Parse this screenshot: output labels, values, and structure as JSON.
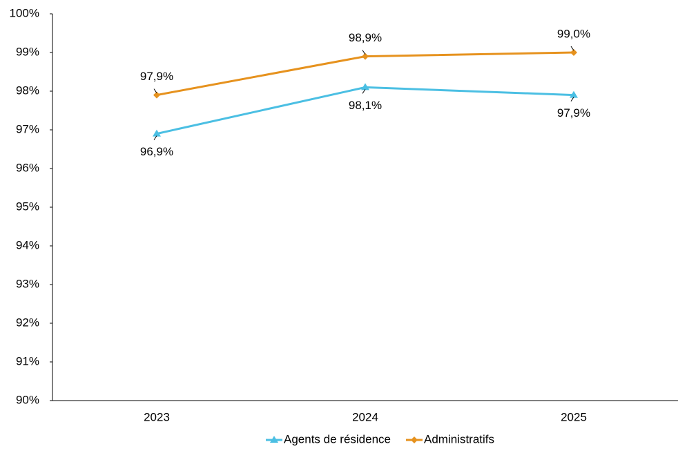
{
  "chart_data": {
    "type": "line",
    "categories": [
      "2023",
      "2024",
      "2025"
    ],
    "series": [
      {
        "name": "Agents de résidence",
        "color": "#4bbfe3",
        "marker": "triangle",
        "values": [
          96.9,
          98.1,
          97.9
        ],
        "value_labels": [
          "96,9%",
          "98,1%",
          "97,9%"
        ]
      },
      {
        "name": "Administratifs",
        "color": "#e6921e",
        "marker": "diamond",
        "values": [
          97.9,
          98.9,
          99.0
        ],
        "value_labels": [
          "97,9%",
          "98,9%",
          "99,0%"
        ]
      }
    ],
    "ylim": [
      90,
      100
    ],
    "yticks": [
      {
        "value": 90,
        "label": "90%"
      },
      {
        "value": 91,
        "label": "91%"
      },
      {
        "value": 92,
        "label": "92%"
      },
      {
        "value": 93,
        "label": "93%"
      },
      {
        "value": 94,
        "label": "94%"
      },
      {
        "value": 95,
        "label": "95%"
      },
      {
        "value": 96,
        "label": "96%"
      },
      {
        "value": 97,
        "label": "97%"
      },
      {
        "value": 98,
        "label": "98%"
      },
      {
        "value": 99,
        "label": "99%"
      },
      {
        "value": 100,
        "label": "100%"
      }
    ],
    "grid": false,
    "legend": "bottom"
  }
}
